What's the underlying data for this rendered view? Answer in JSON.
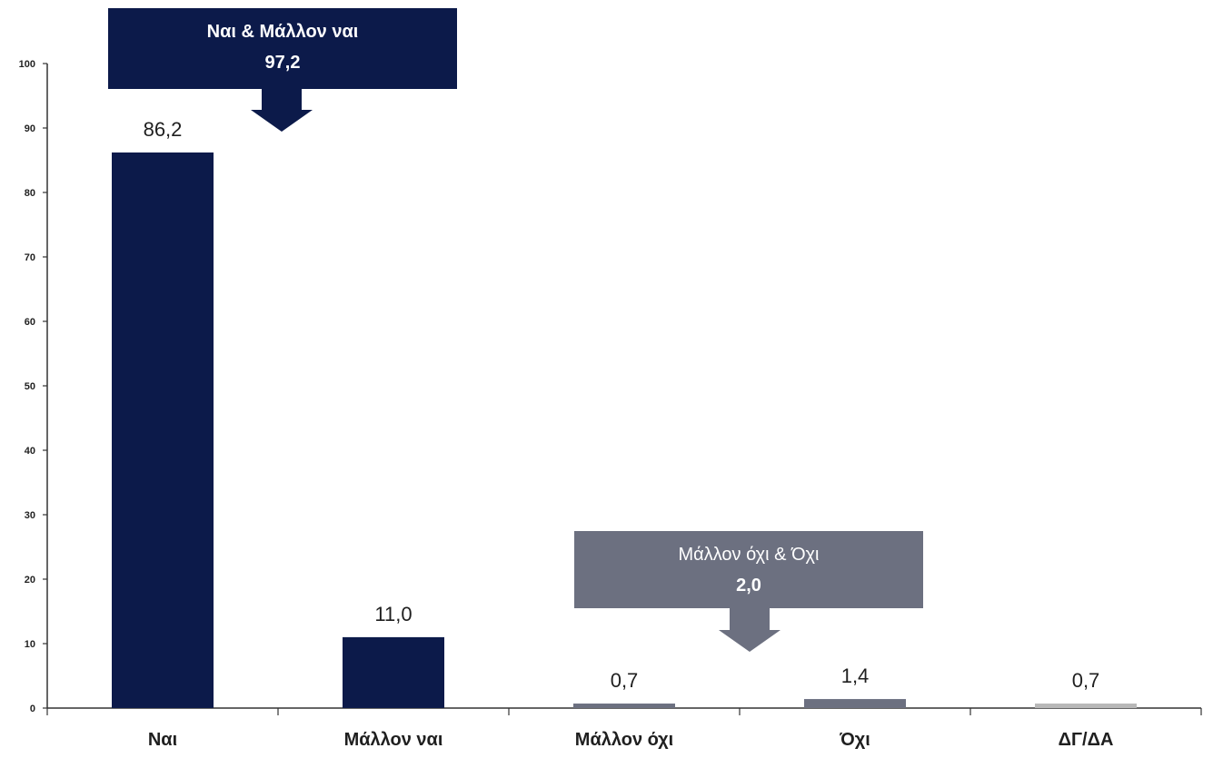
{
  "chart_data": {
    "type": "bar",
    "categories": [
      "Ναι",
      "Μάλλον ναι",
      "Μάλλον όχι",
      "Όχι",
      "ΔΓ/ΔΑ"
    ],
    "values": [
      86.2,
      11.0,
      0.7,
      1.4,
      0.7
    ],
    "value_labels": [
      "86,2",
      "11,0",
      "0,7",
      "1,4",
      "0,7"
    ],
    "bar_colors": [
      "#0c1a4a",
      "#0c1a4a",
      "#6c7080",
      "#6c7080",
      "#b8b8b8"
    ],
    "ylim": [
      0,
      100
    ],
    "yticks": [
      0,
      10,
      20,
      30,
      40,
      50,
      60,
      70,
      80,
      90,
      100
    ],
    "grid": false,
    "title": "",
    "xlabel": "",
    "ylabel": "",
    "callouts": [
      {
        "label": "Ναι & Μάλλον ναι",
        "value_label": "97,2",
        "value": 97.2,
        "color": "#0c1a4a"
      },
      {
        "label": "Μάλλον όχι & Όχι",
        "value_label": "2,0",
        "value": 2.0,
        "color": "#6c7080"
      }
    ]
  }
}
